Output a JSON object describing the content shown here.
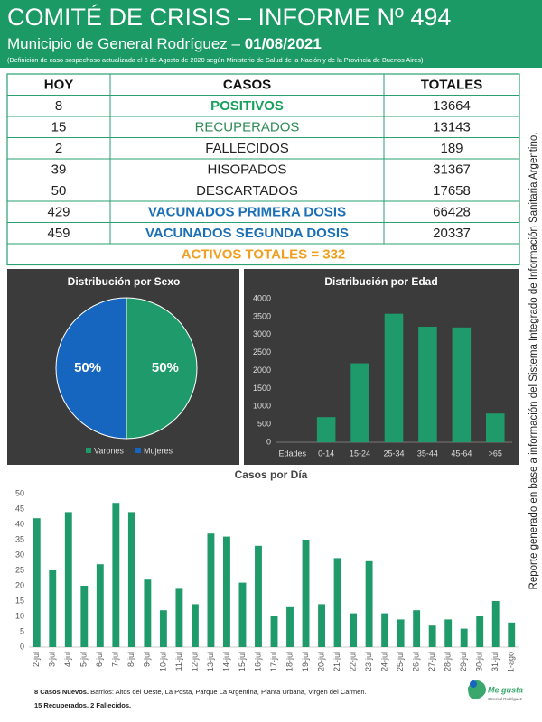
{
  "header": {
    "title": "COMITÉ DE CRISIS – INFORME Nº 494",
    "subtitle": "Municipio de General Rodríguez – ",
    "date": "01/08/2021",
    "note": "(Definición de caso sospechoso actualizada el 6 de Agosto de 2020 según Ministerio de Salud de la Nación y de la Provincia de Buenos Aires)"
  },
  "table": {
    "columns": [
      "HOY",
      "CASOS",
      "TOTALES"
    ],
    "rows": [
      [
        8,
        "POSITIVOS",
        13664
      ],
      [
        15,
        "RECUPERADOS",
        13143
      ],
      [
        2,
        "FALLECIDOS",
        189
      ],
      [
        39,
        "HISOPADOS",
        31367
      ],
      [
        50,
        "DESCARTADOS",
        17658
      ],
      [
        429,
        "VACUNADOS PRIMERA DOSIS",
        66428
      ],
      [
        459,
        "VACUNADOS SEGUNDA DOSIS",
        20337
      ]
    ],
    "case_colors": [
      "#17a05d",
      "#2e8b57",
      "#222222",
      "#222222",
      "#222222",
      "#1a6fb5",
      "#1a6fb5"
    ],
    "total": "ACTIVOS TOTALES = 332",
    "total_color": "#f0a020"
  },
  "chart_data": [
    {
      "type": "pie",
      "title": "Distribución por Sexo",
      "categories": [
        "Varones",
        "Mujeres"
      ],
      "values": [
        50,
        50
      ],
      "value_labels": [
        "50%",
        "50%"
      ],
      "colors": [
        "#1f9a6a",
        "#1666c0"
      ],
      "legend": "bottom"
    },
    {
      "type": "bar",
      "title": "Distribución por Edad",
      "xlabel": "Edades",
      "categories": [
        "0-14",
        "15-24",
        "25-34",
        "35-44",
        "45-64",
        ">65"
      ],
      "values": [
        700,
        2200,
        3580,
        3220,
        3200,
        800
      ],
      "color": "#1f9a6a",
      "ylim": [
        0,
        4000
      ],
      "yticks": [
        0,
        500,
        1000,
        1500,
        2000,
        2500,
        3000,
        3500,
        4000
      ],
      "grid": false
    },
    {
      "type": "bar",
      "title": "Casos por Día",
      "categories": [
        "2-jul",
        "3-jul",
        "4-jul",
        "5-jul",
        "6-jul",
        "7-jul",
        "8-jul",
        "9-jul",
        "10-jul",
        "11-jul",
        "12-jul",
        "13-jul",
        "14-jul",
        "15-jul",
        "16-jul",
        "17-jul",
        "18-jul",
        "19-jul",
        "20-jul",
        "21-jul",
        "22-jul",
        "23-jul",
        "24-jul",
        "25-jul",
        "26-jul",
        "27-jul",
        "28-jul",
        "29-jul",
        "30-jul",
        "31-jul",
        "1-ago"
      ],
      "values": [
        42,
        25,
        44,
        20,
        27,
        47,
        44,
        22,
        12,
        19,
        14,
        37,
        36,
        21,
        33,
        10,
        13,
        35,
        14,
        29,
        11,
        28,
        11,
        9,
        12,
        7,
        9,
        6,
        10,
        15,
        8
      ],
      "color": "#1f9a6a",
      "ylim": [
        0,
        50
      ],
      "yticks": [
        0,
        5,
        10,
        15,
        20,
        25,
        30,
        35,
        40,
        45,
        50
      ],
      "grid": false
    }
  ],
  "footer": {
    "new_cases": "8 Casos Nuevos.",
    "barrios": " Barrios: Altos del Oeste, La Posta, Parque La Argentina, Planta Urbana, Virgen del Carmen.",
    "recovered": "15 Recuperados. 2 Fallecidos."
  },
  "side_note": "Reporte generado en base a información del Sistema Integrado de Información Sanitaria Argentino.",
  "logo": {
    "name": "Me gusta",
    "place": "General Rodríguez"
  }
}
